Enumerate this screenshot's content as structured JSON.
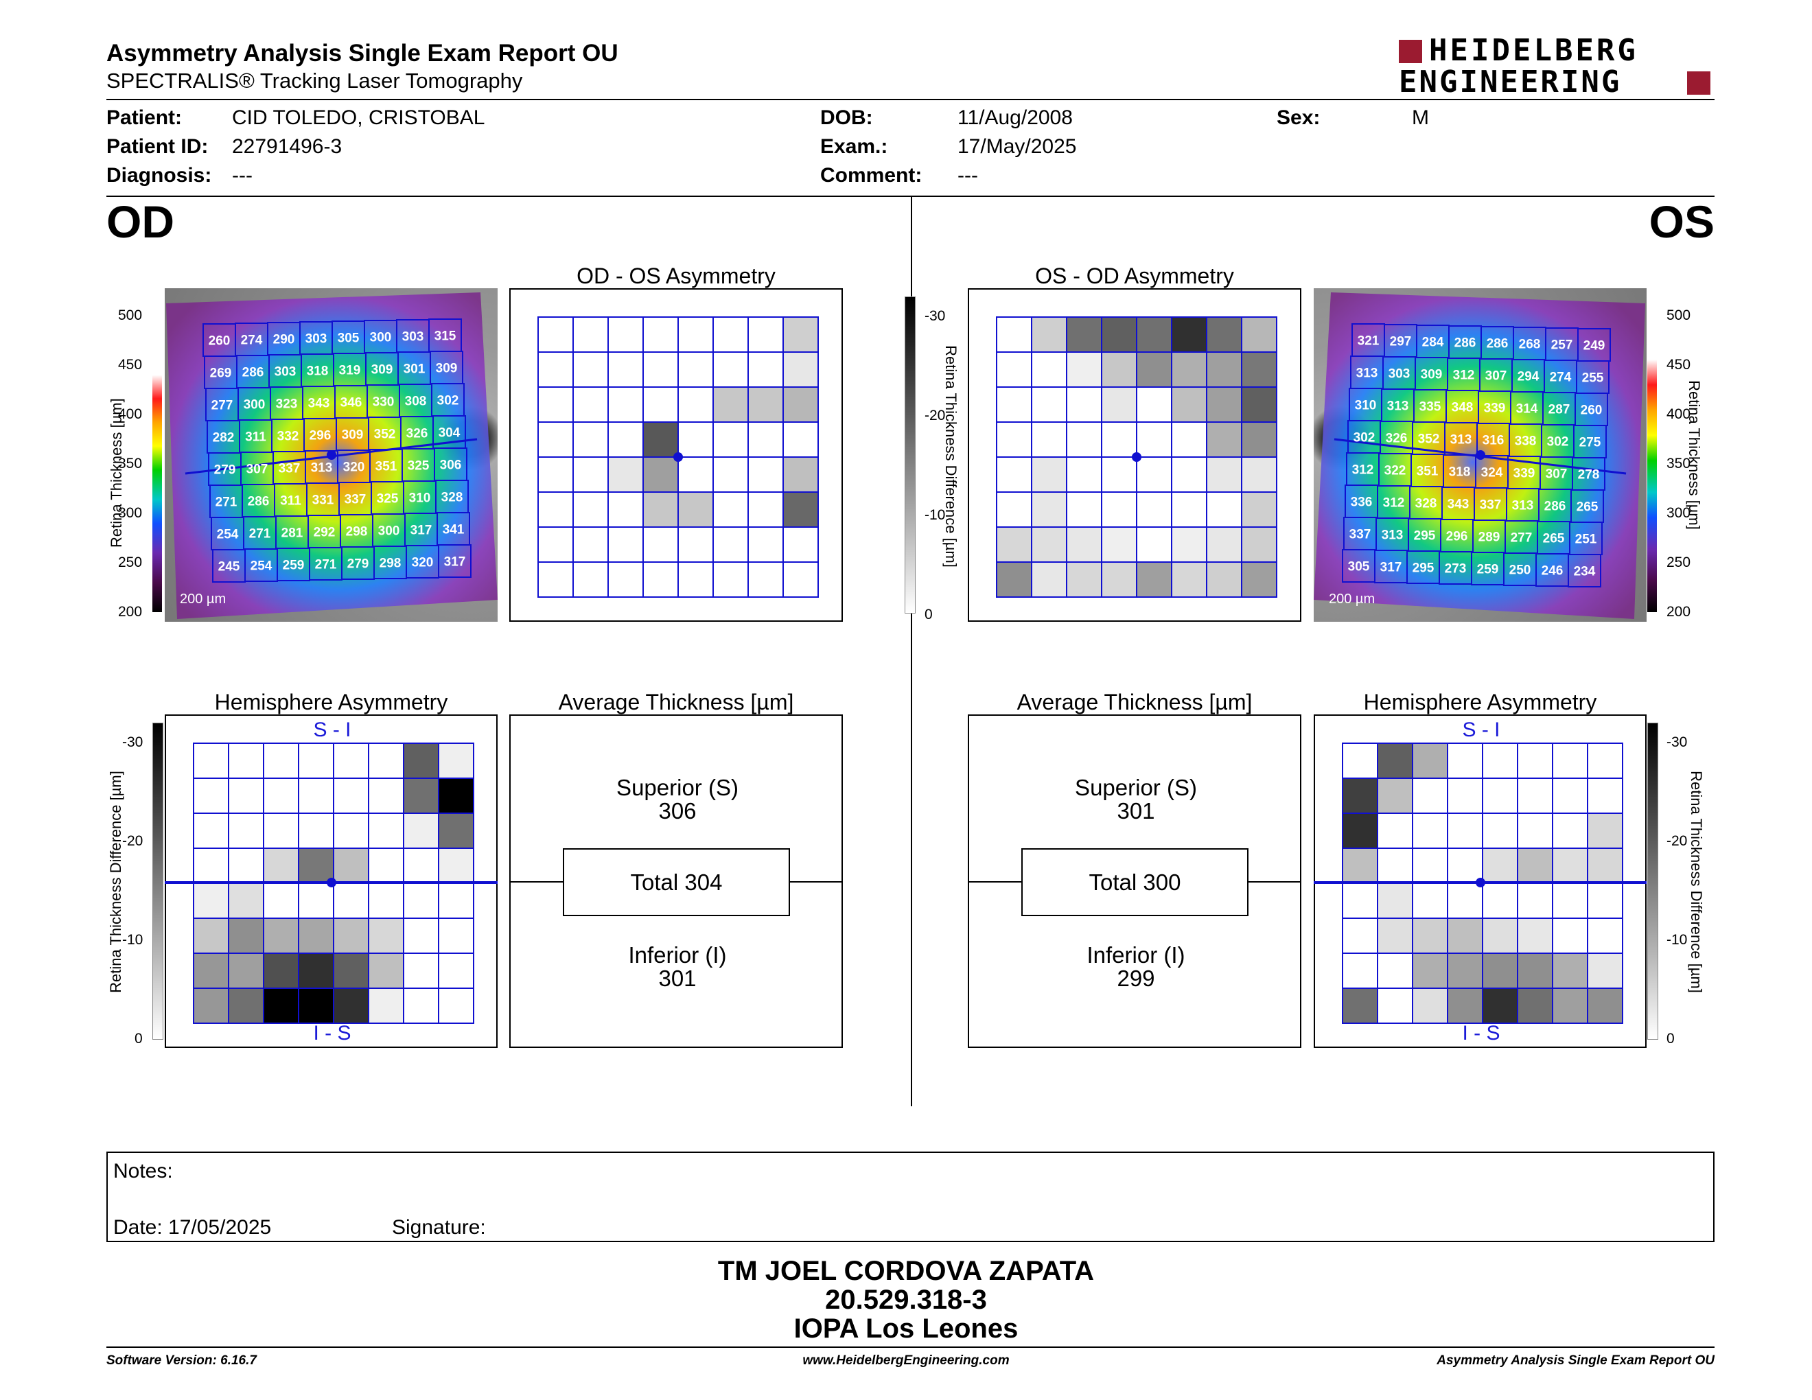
{
  "header": {
    "title": "Asymmetry Analysis Single Exam Report OU",
    "subtitle": "SPECTRALIS® Tracking Laser Tomography",
    "logo_line1": "HEIDELBERG",
    "logo_line2": "ENGINEERING",
    "brand_color": "#9b1b30"
  },
  "patient": {
    "patient_label": "Patient:",
    "patient_value": "CID TOLEDO, CRISTOBAL",
    "id_label": "Patient ID:",
    "id_value": "22791496-3",
    "diagnosis_label": "Diagnosis:",
    "diagnosis_value": "---",
    "dob_label": "DOB:",
    "dob_value": "11/Aug/2008",
    "exam_label": "Exam.:",
    "exam_value": "17/May/2025",
    "comment_label": "Comment:",
    "comment_value": "---",
    "sex_label": "Sex:",
    "sex_value": "M"
  },
  "eyes": {
    "od": "OD",
    "os": "OS"
  },
  "titles": {
    "od_os_asym": "OD - OS Asymmetry",
    "os_od_asym": "OS - OD Asymmetry",
    "hemi": "Hemisphere Asymmetry",
    "avg": "Average Thickness [µm]"
  },
  "axis": {
    "thickness_label": "Retina Thickness [µm]",
    "diff_label": "Retina Thickness Difference [µm]",
    "thickness_ticks": [
      "500",
      "450",
      "400",
      "350",
      "300",
      "250",
      "200"
    ],
    "diff_ticks": [
      "-30",
      "-20",
      "-10",
      "0"
    ],
    "scale_bar": "200 µm",
    "si": "S - I",
    "is": "I - S"
  },
  "od_thickness_grid": [
    [
      260,
      274,
      290,
      303,
      305,
      300,
      303,
      315
    ],
    [
      269,
      286,
      303,
      318,
      319,
      309,
      301,
      309
    ],
    [
      277,
      300,
      323,
      343,
      346,
      330,
      308,
      302
    ],
    [
      282,
      311,
      332,
      296,
      309,
      352,
      326,
      304
    ],
    [
      279,
      307,
      337,
      313,
      320,
      351,
      325,
      306
    ],
    [
      271,
      286,
      311,
      331,
      337,
      325,
      310,
      328
    ],
    [
      254,
      271,
      281,
      292,
      298,
      300,
      317,
      341
    ],
    [
      245,
      254,
      259,
      271,
      279,
      298,
      320,
      317
    ]
  ],
  "os_thickness_grid": [
    [
      321,
      297,
      284,
      286,
      286,
      268,
      257,
      249
    ],
    [
      313,
      303,
      309,
      312,
      307,
      294,
      274,
      255
    ],
    [
      310,
      313,
      335,
      348,
      339,
      314,
      287,
      260
    ],
    [
      302,
      326,
      352,
      313,
      316,
      338,
      302,
      275
    ],
    [
      312,
      322,
      351,
      318,
      324,
      339,
      307,
      278
    ],
    [
      336,
      312,
      328,
      343,
      337,
      313,
      286,
      265
    ],
    [
      337,
      313,
      295,
      296,
      289,
      277,
      265,
      251
    ],
    [
      305,
      317,
      295,
      273,
      259,
      250,
      246,
      234
    ]
  ],
  "od_asym_grid": [
    [
      0,
      0,
      0,
      0,
      0,
      0,
      0,
      6
    ],
    [
      0,
      0,
      0,
      0,
      0,
      0,
      0,
      3
    ],
    [
      0,
      0,
      0,
      0,
      0,
      7,
      7,
      9
    ],
    [
      0,
      0,
      0,
      21,
      0,
      0,
      0,
      0
    ],
    [
      0,
      0,
      3,
      12,
      0,
      0,
      0,
      8
    ],
    [
      0,
      0,
      0,
      7,
      7,
      0,
      0,
      19
    ],
    [
      0,
      0,
      0,
      0,
      0,
      0,
      0,
      0
    ],
    [
      0,
      0,
      0,
      0,
      0,
      0,
      0,
      0
    ]
  ],
  "os_asym_grid": [
    [
      0,
      6,
      18,
      20,
      18,
      26,
      18,
      9
    ],
    [
      0,
      0,
      2,
      7,
      14,
      10,
      12,
      17
    ],
    [
      0,
      0,
      0,
      3,
      0,
      8,
      12,
      20
    ],
    [
      0,
      0,
      0,
      0,
      0,
      0,
      10,
      14
    ],
    [
      0,
      3,
      0,
      0,
      0,
      0,
      3,
      3
    ],
    [
      0,
      3,
      0,
      0,
      0,
      0,
      0,
      6
    ],
    [
      5,
      4,
      3,
      2,
      0,
      2,
      3,
      6
    ],
    [
      14,
      3,
      5,
      5,
      12,
      5,
      6,
      12
    ]
  ],
  "od_hemi_grid": [
    [
      0,
      0,
      0,
      0,
      0,
      0,
      20,
      2
    ],
    [
      0,
      0,
      0,
      0,
      0,
      0,
      18,
      32
    ],
    [
      0,
      0,
      0,
      0,
      0,
      0,
      2,
      18
    ],
    [
      0,
      0,
      5,
      17,
      8,
      0,
      0,
      2
    ],
    [
      2,
      4,
      0,
      0,
      0,
      0,
      0,
      0
    ],
    [
      7,
      14,
      10,
      11,
      8,
      5,
      0,
      0
    ],
    [
      13,
      12,
      22,
      26,
      20,
      8,
      0,
      0
    ],
    [
      13,
      18,
      32,
      32,
      26,
      2,
      0,
      0
    ]
  ],
  "os_hemi_grid": [
    [
      0,
      20,
      10,
      0,
      0,
      0,
      0,
      0
    ],
    [
      24,
      8,
      0,
      0,
      0,
      0,
      0,
      0
    ],
    [
      26,
      0,
      0,
      0,
      0,
      0,
      0,
      5
    ],
    [
      8,
      0,
      0,
      0,
      4,
      8,
      4,
      5
    ],
    [
      0,
      3,
      0,
      0,
      0,
      0,
      0,
      0
    ],
    [
      0,
      4,
      6,
      8,
      4,
      3,
      0,
      0
    ],
    [
      0,
      0,
      10,
      12,
      14,
      14,
      10,
      3
    ],
    [
      18,
      0,
      4,
      14,
      26,
      18,
      12,
      14
    ]
  ],
  "od_avg": {
    "superior_label": "Superior (S)",
    "superior": "306",
    "total": "Total 304",
    "inferior_label": "Inferior (I)",
    "inferior": "301"
  },
  "os_avg": {
    "superior_label": "Superior (S)",
    "superior": "301",
    "total": "Total 300",
    "inferior_label": "Inferior (I)",
    "inferior": "299"
  },
  "notes": {
    "notes_label": "Notes:",
    "date_label": "Date: 17/05/2025",
    "signature_label": "Signature:"
  },
  "signer": {
    "name": "TM JOEL CORDOVA ZAPATA",
    "rut": "20.529.318-3",
    "place": "IOPA Los Leones"
  },
  "footer": {
    "version": "Software Version: 6.16.7",
    "url": "www.HeidelbergEngineering.com",
    "report": "Asymmetry Analysis Single Exam Report OU"
  },
  "colors": {
    "grid_blue": "#1010d0",
    "diff_max": 32
  }
}
